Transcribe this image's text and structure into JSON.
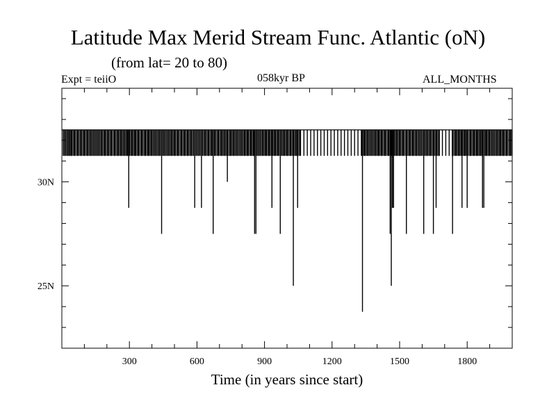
{
  "header": {
    "title": "Latitude Max Merid Stream Func. Atlantic (oN)",
    "subtitle": "(from lat= 20 to 80)",
    "expt": "Expt = teiiO",
    "period": "058kyr BP",
    "months": "ALL_MONTHS"
  },
  "chart_data": {
    "type": "line",
    "title": "Latitude Max Merid Stream Func. Atlantic (oN)",
    "subtitle": "(from lat= 20 to 80)",
    "xlabel": "Time (in years since start)",
    "ylabel": "",
    "xlim": [
      0,
      2000
    ],
    "ylim": [
      22.0,
      34.5
    ],
    "x_ticks": [
      300,
      600,
      900,
      1200,
      1500,
      1800
    ],
    "x_tick_labels": [
      "300",
      "600",
      "900",
      "1200",
      "1500",
      "1800"
    ],
    "y_ticks": [
      25,
      30
    ],
    "y_tick_labels": [
      "25N",
      "30N"
    ],
    "grid": false,
    "legend": "none",
    "baseline": 32.5,
    "common_low": 31.25,
    "series": [
      {
        "name": "",
        "dips": [
          {
            "x": 10,
            "y": 31.25
          },
          {
            "x": 25,
            "y": 31.25
          },
          {
            "x": 35,
            "y": 31.25
          },
          {
            "x": 42,
            "y": 31.25
          },
          {
            "x": 55,
            "y": 31.25
          },
          {
            "x": 70,
            "y": 31.25
          },
          {
            "x": 85,
            "y": 31.25
          },
          {
            "x": 100,
            "y": 31.25
          },
          {
            "x": 115,
            "y": 31.25
          },
          {
            "x": 130,
            "y": 31.25
          },
          {
            "x": 145,
            "y": 31.25
          },
          {
            "x": 160,
            "y": 31.25
          },
          {
            "x": 175,
            "y": 31.25
          },
          {
            "x": 190,
            "y": 31.25
          },
          {
            "x": 205,
            "y": 31.25
          },
          {
            "x": 220,
            "y": 31.25
          },
          {
            "x": 235,
            "y": 31.25
          },
          {
            "x": 250,
            "y": 31.25
          },
          {
            "x": 265,
            "y": 31.25
          },
          {
            "x": 280,
            "y": 31.25
          },
          {
            "x": 290,
            "y": 31.25
          },
          {
            "x": 297,
            "y": 28.75
          },
          {
            "x": 310,
            "y": 31.25
          },
          {
            "x": 325,
            "y": 31.25
          },
          {
            "x": 340,
            "y": 31.25
          },
          {
            "x": 355,
            "y": 31.25
          },
          {
            "x": 370,
            "y": 31.25
          },
          {
            "x": 385,
            "y": 31.25
          },
          {
            "x": 400,
            "y": 31.25
          },
          {
            "x": 415,
            "y": 31.25
          },
          {
            "x": 430,
            "y": 31.25
          },
          {
            "x": 443,
            "y": 27.5
          },
          {
            "x": 455,
            "y": 31.25
          },
          {
            "x": 470,
            "y": 31.25
          },
          {
            "x": 485,
            "y": 31.25
          },
          {
            "x": 500,
            "y": 31.25
          },
          {
            "x": 515,
            "y": 31.25
          },
          {
            "x": 530,
            "y": 31.25
          },
          {
            "x": 545,
            "y": 31.25
          },
          {
            "x": 560,
            "y": 31.25
          },
          {
            "x": 575,
            "y": 31.25
          },
          {
            "x": 590,
            "y": 28.75
          },
          {
            "x": 605,
            "y": 31.25
          },
          {
            "x": 620,
            "y": 28.75
          },
          {
            "x": 635,
            "y": 31.25
          },
          {
            "x": 650,
            "y": 31.25
          },
          {
            "x": 665,
            "y": 31.25
          },
          {
            "x": 672,
            "y": 27.5
          },
          {
            "x": 680,
            "y": 31.25
          },
          {
            "x": 695,
            "y": 31.25
          },
          {
            "x": 710,
            "y": 31.25
          },
          {
            "x": 725,
            "y": 31.25
          },
          {
            "x": 735,
            "y": 30.0
          },
          {
            "x": 750,
            "y": 31.25
          },
          {
            "x": 765,
            "y": 31.25
          },
          {
            "x": 780,
            "y": 31.25
          },
          {
            "x": 795,
            "y": 31.25
          },
          {
            "x": 810,
            "y": 31.25
          },
          {
            "x": 825,
            "y": 31.25
          },
          {
            "x": 840,
            "y": 31.25
          },
          {
            "x": 850,
            "y": 31.25
          },
          {
            "x": 856,
            "y": 27.5
          },
          {
            "x": 862,
            "y": 27.5
          },
          {
            "x": 875,
            "y": 31.25
          },
          {
            "x": 890,
            "y": 31.25
          },
          {
            "x": 905,
            "y": 31.25
          },
          {
            "x": 920,
            "y": 31.25
          },
          {
            "x": 933,
            "y": 28.75
          },
          {
            "x": 945,
            "y": 31.25
          },
          {
            "x": 960,
            "y": 31.25
          },
          {
            "x": 970,
            "y": 27.5
          },
          {
            "x": 985,
            "y": 31.25
          },
          {
            "x": 1000,
            "y": 31.25
          },
          {
            "x": 1015,
            "y": 31.25
          },
          {
            "x": 1028,
            "y": 25.0
          },
          {
            "x": 1040,
            "y": 31.25
          },
          {
            "x": 1047,
            "y": 28.75
          },
          {
            "x": 1060,
            "y": 31.25
          },
          {
            "x": 1075,
            "y": 31.25
          },
          {
            "x": 1090,
            "y": 31.25
          },
          {
            "x": 1105,
            "y": 31.25
          },
          {
            "x": 1120,
            "y": 31.25
          },
          {
            "x": 1135,
            "y": 31.25
          },
          {
            "x": 1150,
            "y": 31.25
          },
          {
            "x": 1165,
            "y": 31.25
          },
          {
            "x": 1180,
            "y": 31.25
          },
          {
            "x": 1195,
            "y": 31.25
          },
          {
            "x": 1210,
            "y": 31.25
          },
          {
            "x": 1225,
            "y": 31.25
          },
          {
            "x": 1240,
            "y": 31.25
          },
          {
            "x": 1255,
            "y": 31.25
          },
          {
            "x": 1270,
            "y": 31.25
          },
          {
            "x": 1285,
            "y": 31.25
          },
          {
            "x": 1300,
            "y": 31.25
          },
          {
            "x": 1315,
            "y": 31.25
          },
          {
            "x": 1330,
            "y": 31.25
          },
          {
            "x": 1335,
            "y": 23.75
          },
          {
            "x": 1345,
            "y": 31.25
          },
          {
            "x": 1360,
            "y": 31.25
          },
          {
            "x": 1375,
            "y": 31.25
          },
          {
            "x": 1390,
            "y": 31.25
          },
          {
            "x": 1405,
            "y": 31.25
          },
          {
            "x": 1420,
            "y": 31.25
          },
          {
            "x": 1435,
            "y": 31.25
          },
          {
            "x": 1450,
            "y": 31.25
          },
          {
            "x": 1458,
            "y": 27.5
          },
          {
            "x": 1463,
            "y": 25.0
          },
          {
            "x": 1468,
            "y": 28.75
          },
          {
            "x": 1473,
            "y": 28.75
          },
          {
            "x": 1485,
            "y": 31.25
          },
          {
            "x": 1500,
            "y": 31.25
          },
          {
            "x": 1515,
            "y": 31.25
          },
          {
            "x": 1530,
            "y": 27.5
          },
          {
            "x": 1545,
            "y": 31.25
          },
          {
            "x": 1560,
            "y": 31.25
          },
          {
            "x": 1575,
            "y": 31.25
          },
          {
            "x": 1590,
            "y": 31.25
          },
          {
            "x": 1607,
            "y": 27.5
          },
          {
            "x": 1620,
            "y": 31.25
          },
          {
            "x": 1635,
            "y": 31.25
          },
          {
            "x": 1650,
            "y": 27.5
          },
          {
            "x": 1662,
            "y": 28.75
          },
          {
            "x": 1675,
            "y": 31.25
          },
          {
            "x": 1690,
            "y": 31.25
          },
          {
            "x": 1705,
            "y": 31.25
          },
          {
            "x": 1720,
            "y": 31.25
          },
          {
            "x": 1735,
            "y": 27.5
          },
          {
            "x": 1750,
            "y": 31.25
          },
          {
            "x": 1765,
            "y": 31.25
          },
          {
            "x": 1777,
            "y": 28.75
          },
          {
            "x": 1790,
            "y": 31.25
          },
          {
            "x": 1800,
            "y": 28.75
          },
          {
            "x": 1815,
            "y": 31.25
          },
          {
            "x": 1830,
            "y": 31.25
          },
          {
            "x": 1845,
            "y": 31.25
          },
          {
            "x": 1860,
            "y": 31.25
          },
          {
            "x": 1868,
            "y": 28.75
          },
          {
            "x": 1874,
            "y": 28.75
          },
          {
            "x": 1885,
            "y": 31.25
          },
          {
            "x": 1900,
            "y": 31.25
          },
          {
            "x": 1915,
            "y": 31.25
          },
          {
            "x": 1930,
            "y": 31.25
          },
          {
            "x": 1945,
            "y": 31.25
          },
          {
            "x": 1960,
            "y": 31.25
          },
          {
            "x": 1975,
            "y": 31.25
          },
          {
            "x": 1990,
            "y": 31.25
          }
        ]
      }
    ]
  }
}
